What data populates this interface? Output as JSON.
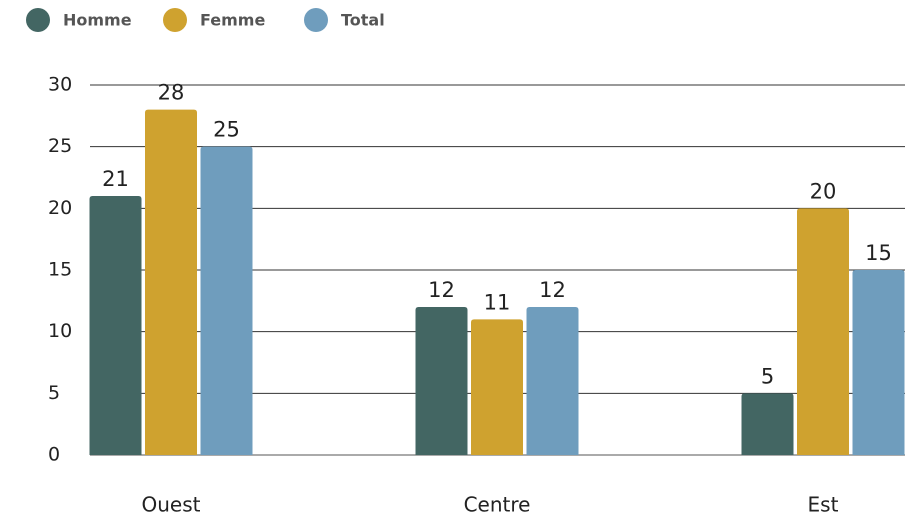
{
  "chart_data": {
    "type": "bar",
    "categories": [
      "Ouest",
      "Centre",
      "Est"
    ],
    "series": [
      {
        "name": "Homme",
        "color": "#436663",
        "values": [
          21,
          12,
          5
        ]
      },
      {
        "name": "Femme",
        "color": "#cfa22f",
        "values": [
          28,
          11,
          20
        ]
      },
      {
        "name": "Total",
        "color": "#6f9dbd",
        "values": [
          25,
          12,
          15
        ]
      }
    ],
    "ylim": [
      0,
      30
    ],
    "yticks": [
      0,
      5,
      10,
      15,
      20,
      25,
      30
    ],
    "grid": true,
    "legend": "top-left"
  }
}
